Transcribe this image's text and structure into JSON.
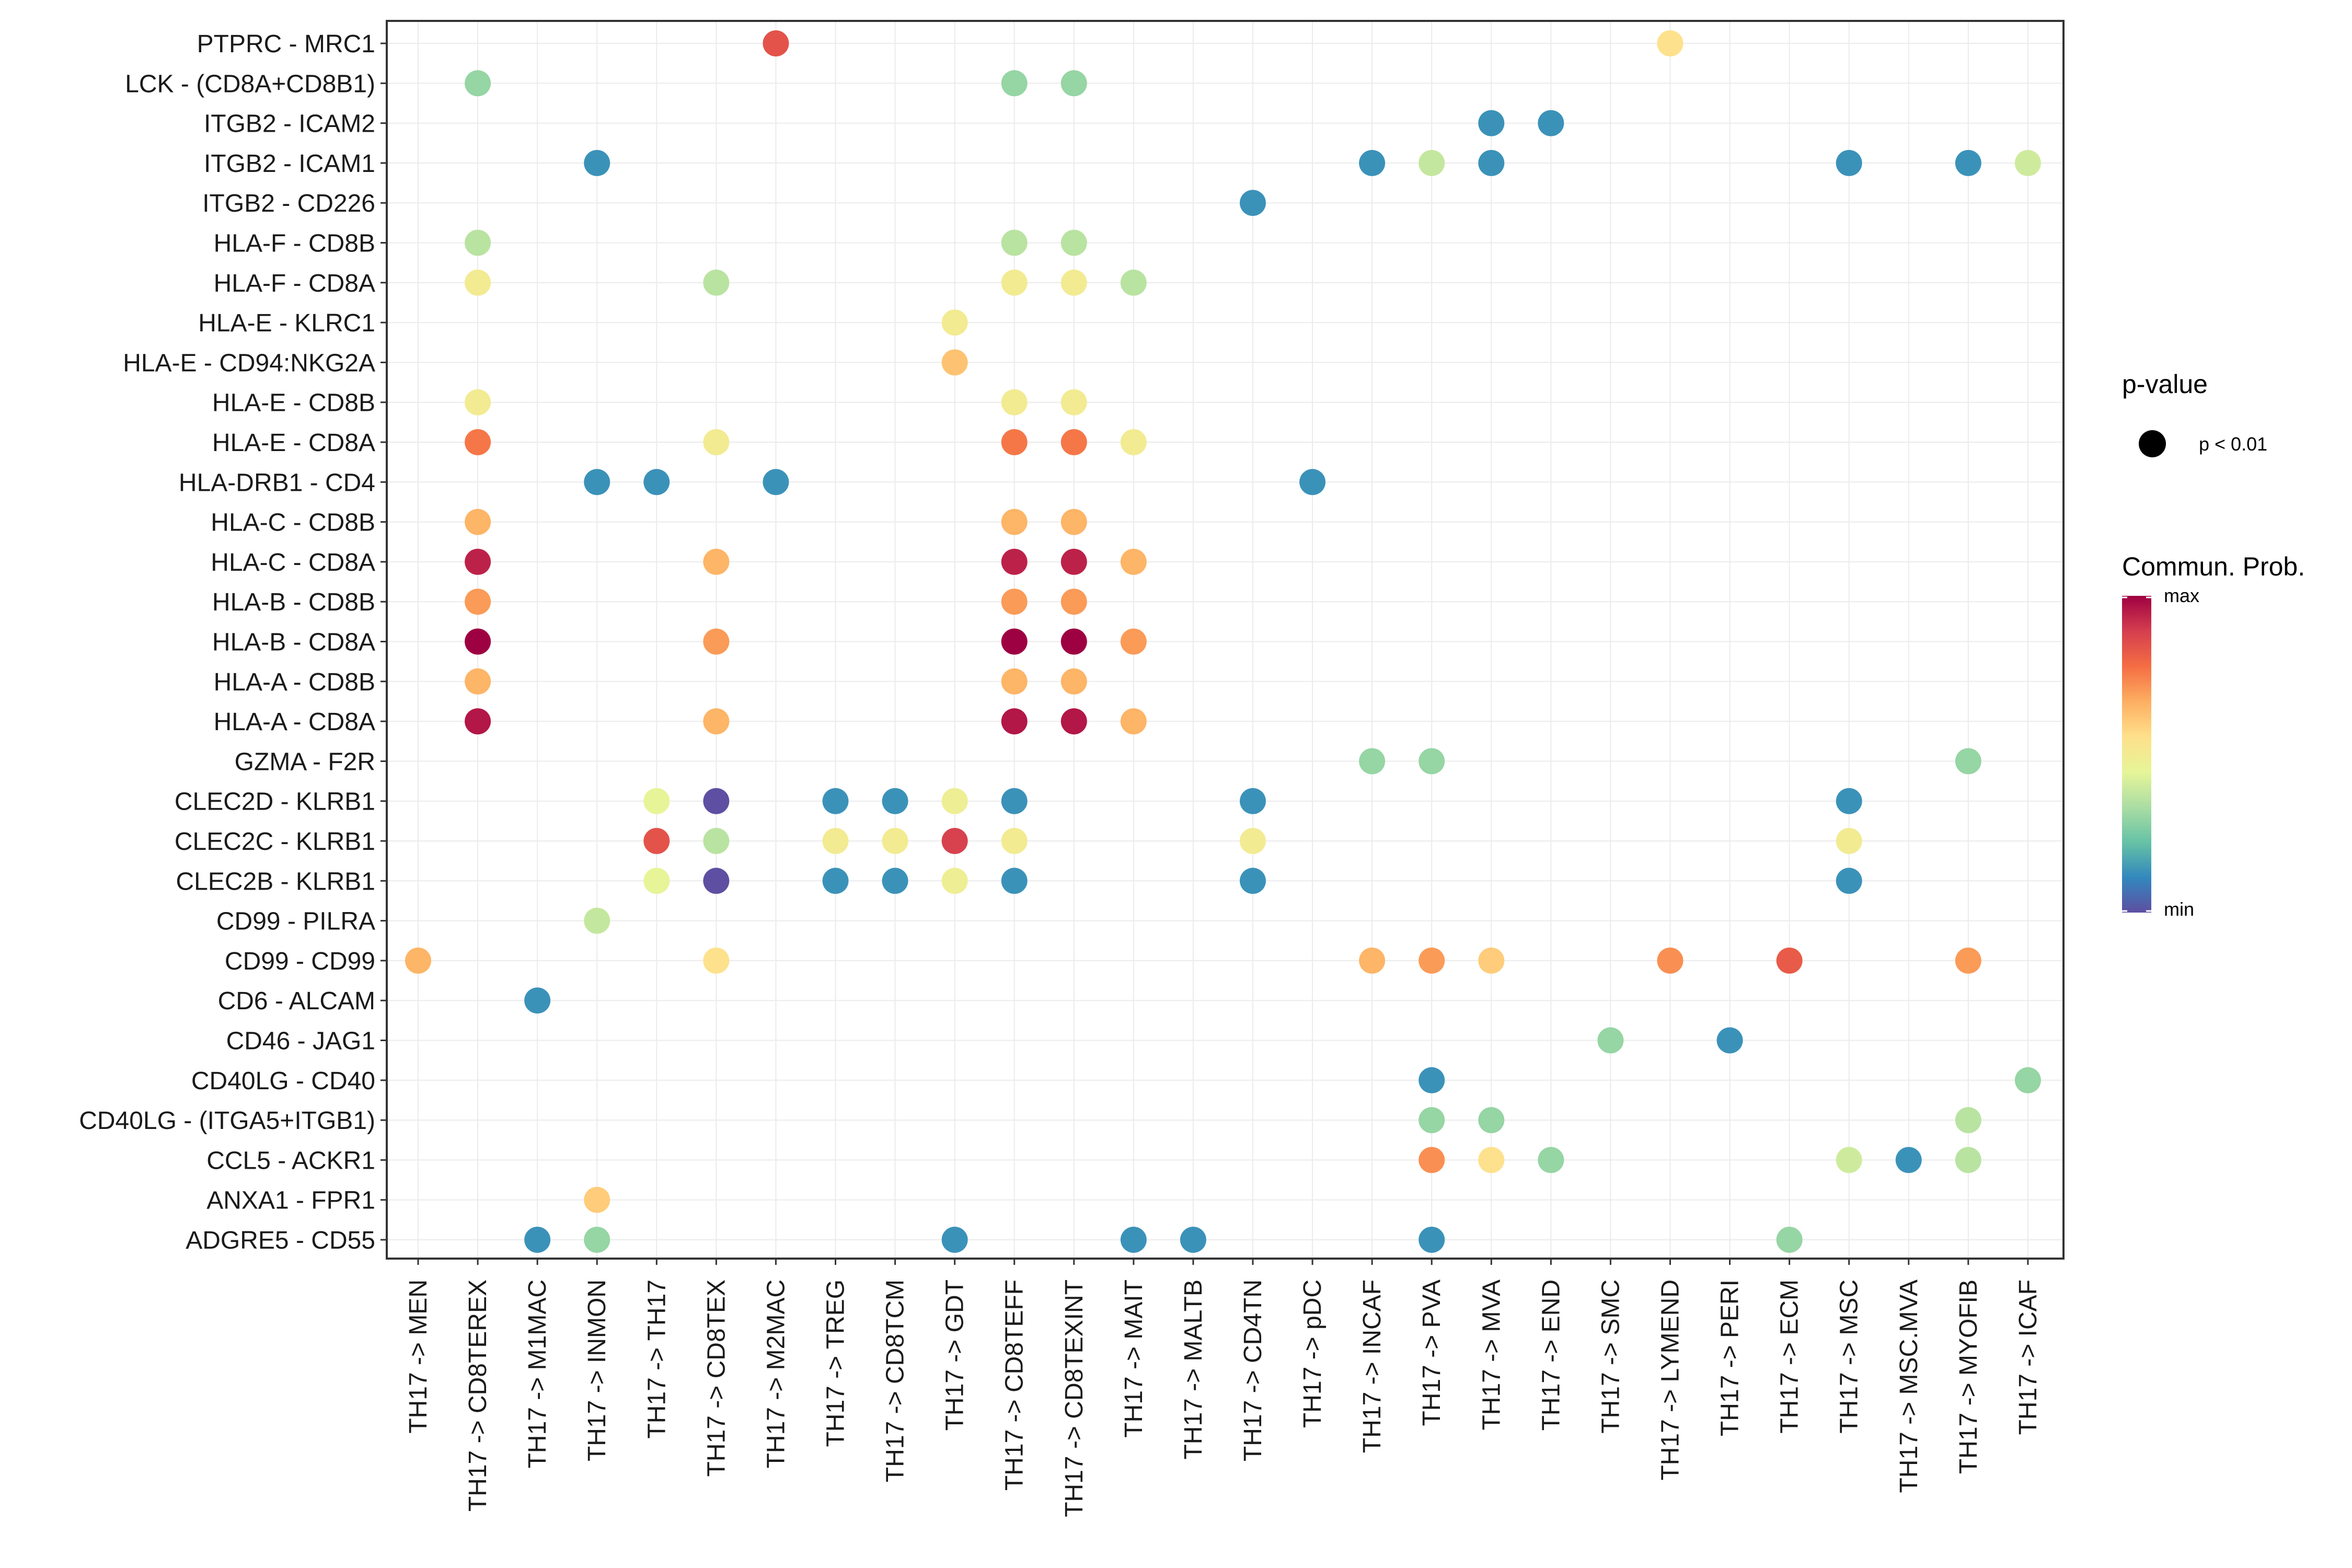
{
  "chart_data": {
    "type": "dotplot",
    "x_categories": [
      "TH17 -> MEN",
      "TH17 -> CD8TEREX",
      "TH17 -> M1MAC",
      "TH17 -> INMON",
      "TH17 -> TH17",
      "TH17 -> CD8TEX",
      "TH17 -> M2MAC",
      "TH17 -> TREG",
      "TH17 -> CD8TCM",
      "TH17 -> GDT",
      "TH17 -> CD8TEFF",
      "TH17 -> CD8TEXINT",
      "TH17 -> MAIT",
      "TH17 -> MALTB",
      "TH17 -> CD4TN",
      "TH17 -> pDC",
      "TH17 -> INCAF",
      "TH17 -> PVA",
      "TH17 -> MVA",
      "TH17 -> END",
      "TH17 -> SMC",
      "TH17 -> LYMEND",
      "TH17 -> PERI",
      "TH17 -> ECM",
      "TH17 -> MSC",
      "TH17 -> MSC.MVA",
      "TH17 -> MYOFIB",
      "TH17 -> ICAF"
    ],
    "y_categories": [
      "PTPRC - MRC1",
      "LCK - (CD8A+CD8B1)",
      "ITGB2 - ICAM2",
      "ITGB2 - ICAM1",
      "ITGB2 - CD226",
      "HLA-F - CD8B",
      "HLA-F - CD8A",
      "HLA-E - KLRC1",
      "HLA-E - CD94:NKG2A",
      "HLA-E - CD8B",
      "HLA-E - CD8A",
      "HLA-DRB1 - CD4",
      "HLA-C - CD8B",
      "HLA-C - CD8A",
      "HLA-B - CD8B",
      "HLA-B - CD8A",
      "HLA-A - CD8B",
      "HLA-A - CD8A",
      "GZMA - F2R",
      "CLEC2D - KLRB1",
      "CLEC2C - KLRB1",
      "CLEC2B - KLRB1",
      "CD99 - PILRA",
      "CD99 - CD99",
      "CD6 - ALCAM",
      "CD46 - JAG1",
      "CD40LG - CD40",
      "CD40LG - (ITGA5+ITGB1)",
      "CCL5 - ACKR1",
      "ANXA1 - FPR1",
      "ADGRE5 - CD55"
    ],
    "points_note": "each point: [x_category_index, y_category_index, relative communication probability 0=min..1=max]",
    "points": [
      [
        6,
        0,
        0.84
      ],
      [
        21,
        0,
        0.55
      ],
      [
        1,
        1,
        0.3
      ],
      [
        10,
        1,
        0.3
      ],
      [
        11,
        1,
        0.3
      ],
      [
        18,
        2,
        0.13
      ],
      [
        19,
        2,
        0.13
      ],
      [
        3,
        3,
        0.13
      ],
      [
        16,
        3,
        0.13
      ],
      [
        17,
        3,
        0.38
      ],
      [
        18,
        3,
        0.13
      ],
      [
        24,
        3,
        0.13
      ],
      [
        26,
        3,
        0.13
      ],
      [
        27,
        3,
        0.4
      ],
      [
        14,
        4,
        0.13
      ],
      [
        1,
        5,
        0.36
      ],
      [
        10,
        5,
        0.36
      ],
      [
        11,
        5,
        0.36
      ],
      [
        1,
        6,
        0.5
      ],
      [
        5,
        6,
        0.36
      ],
      [
        10,
        6,
        0.5
      ],
      [
        11,
        6,
        0.5
      ],
      [
        12,
        6,
        0.36
      ],
      [
        9,
        7,
        0.5
      ],
      [
        9,
        8,
        0.62
      ],
      [
        1,
        9,
        0.5
      ],
      [
        10,
        9,
        0.5
      ],
      [
        11,
        9,
        0.5
      ],
      [
        1,
        10,
        0.76
      ],
      [
        5,
        10,
        0.5
      ],
      [
        10,
        10,
        0.76
      ],
      [
        11,
        10,
        0.76
      ],
      [
        12,
        10,
        0.5
      ],
      [
        3,
        11,
        0.13
      ],
      [
        4,
        11,
        0.13
      ],
      [
        6,
        11,
        0.13
      ],
      [
        15,
        11,
        0.13
      ],
      [
        1,
        12,
        0.65
      ],
      [
        10,
        12,
        0.65
      ],
      [
        11,
        12,
        0.65
      ],
      [
        1,
        13,
        0.94
      ],
      [
        5,
        13,
        0.65
      ],
      [
        10,
        13,
        0.94
      ],
      [
        11,
        13,
        0.94
      ],
      [
        12,
        13,
        0.65
      ],
      [
        1,
        14,
        0.7
      ],
      [
        10,
        14,
        0.7
      ],
      [
        11,
        14,
        0.7
      ],
      [
        1,
        15,
        1.0
      ],
      [
        5,
        15,
        0.7
      ],
      [
        10,
        15,
        1.0
      ],
      [
        11,
        15,
        1.0
      ],
      [
        12,
        15,
        0.7
      ],
      [
        1,
        16,
        0.65
      ],
      [
        10,
        16,
        0.65
      ],
      [
        11,
        16,
        0.65
      ],
      [
        1,
        17,
        0.96
      ],
      [
        5,
        17,
        0.65
      ],
      [
        10,
        17,
        0.96
      ],
      [
        11,
        17,
        0.96
      ],
      [
        12,
        17,
        0.65
      ],
      [
        16,
        18,
        0.3
      ],
      [
        17,
        18,
        0.3
      ],
      [
        26,
        18,
        0.3
      ],
      [
        4,
        19,
        0.45
      ],
      [
        5,
        19,
        0.0
      ],
      [
        7,
        19,
        0.13
      ],
      [
        8,
        19,
        0.13
      ],
      [
        9,
        19,
        0.48
      ],
      [
        10,
        19,
        0.13
      ],
      [
        14,
        19,
        0.13
      ],
      [
        24,
        19,
        0.13
      ],
      [
        4,
        20,
        0.84
      ],
      [
        5,
        20,
        0.36
      ],
      [
        7,
        20,
        0.5
      ],
      [
        8,
        20,
        0.5
      ],
      [
        9,
        20,
        0.88
      ],
      [
        10,
        20,
        0.5
      ],
      [
        14,
        20,
        0.5
      ],
      [
        24,
        20,
        0.5
      ],
      [
        4,
        21,
        0.45
      ],
      [
        5,
        21,
        0.0
      ],
      [
        7,
        21,
        0.13
      ],
      [
        8,
        21,
        0.13
      ],
      [
        9,
        21,
        0.48
      ],
      [
        10,
        21,
        0.13
      ],
      [
        14,
        21,
        0.13
      ],
      [
        24,
        21,
        0.13
      ],
      [
        3,
        22,
        0.38
      ],
      [
        0,
        23,
        0.65
      ],
      [
        5,
        23,
        0.55
      ],
      [
        16,
        23,
        0.65
      ],
      [
        17,
        23,
        0.7
      ],
      [
        18,
        23,
        0.6
      ],
      [
        21,
        23,
        0.72
      ],
      [
        23,
        23,
        0.82
      ],
      [
        26,
        23,
        0.7
      ],
      [
        2,
        24,
        0.13
      ],
      [
        20,
        25,
        0.3
      ],
      [
        22,
        25,
        0.13
      ],
      [
        17,
        26,
        0.13
      ],
      [
        27,
        26,
        0.3
      ],
      [
        17,
        27,
        0.3
      ],
      [
        18,
        27,
        0.3
      ],
      [
        26,
        27,
        0.36
      ],
      [
        17,
        28,
        0.72
      ],
      [
        18,
        28,
        0.55
      ],
      [
        19,
        28,
        0.3
      ],
      [
        24,
        28,
        0.4
      ],
      [
        25,
        28,
        0.13
      ],
      [
        26,
        28,
        0.36
      ],
      [
        3,
        29,
        0.6
      ],
      [
        2,
        30,
        0.13
      ],
      [
        3,
        30,
        0.3
      ],
      [
        9,
        30,
        0.13
      ],
      [
        12,
        30,
        0.13
      ],
      [
        13,
        30,
        0.13
      ],
      [
        17,
        30,
        0.13
      ],
      [
        23,
        30,
        0.3
      ]
    ],
    "colormap": [
      "#5E4FA2",
      "#3288BD",
      "#66C2A5",
      "#ABDDA4",
      "#E6F598",
      "#FEE08B",
      "#FDAE61",
      "#F46D43",
      "#D53E4F",
      "#9E0142"
    ],
    "legend": {
      "pvalue_title": "p-value",
      "pvalue_label": "p < 0.01",
      "colorbar_title": "Commun. Prob.",
      "colorbar_max": "max",
      "colorbar_min": "min"
    }
  }
}
